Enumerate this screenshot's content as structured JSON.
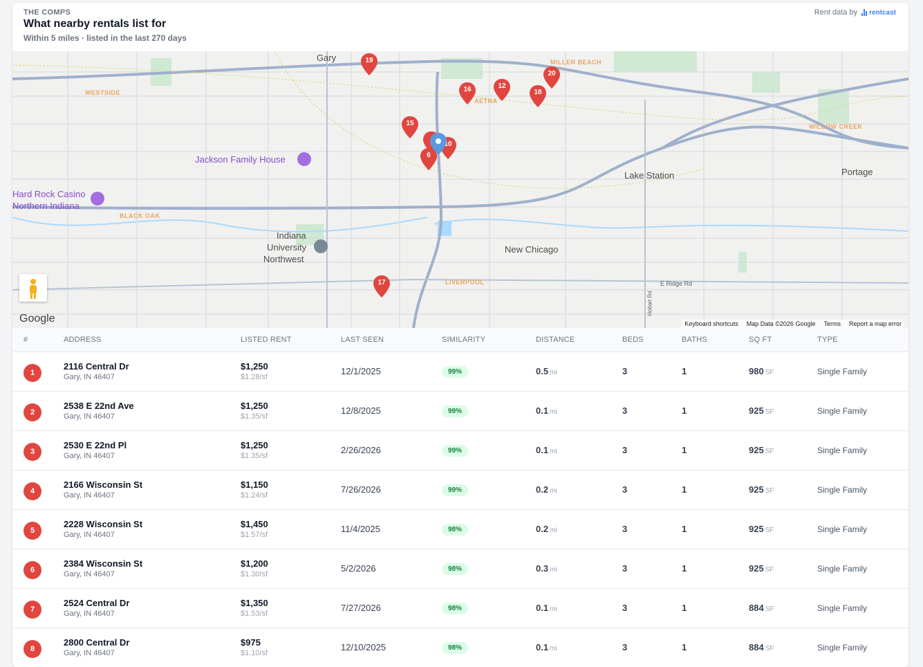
{
  "header": {
    "eyebrow": "THE COMPS",
    "title": "What nearby rentals list for",
    "subtitle": "Within 5 miles · listed in the last 270 days",
    "credit_label": "Rent data by",
    "credit_brand": "rentcast"
  },
  "map": {
    "labels": {
      "gary": "Gary",
      "westside": "WESTSIDE",
      "miller_beach": "MILLER BEACH",
      "aetna": "AETNA",
      "jackson": "Jackson Family House",
      "hard_rock_1": "Hard Rock Casino",
      "hard_rock_2": "Northern Indiana",
      "black_oak": "BLACK OAK",
      "iun_1": "Indiana",
      "iun_2": "University",
      "iun_3": "Northwest",
      "lake_station": "Lake Station",
      "willow_creek": "WILLOW CREEK",
      "portage": "Portage",
      "new_chicago": "New Chicago",
      "liverpool": "LIVERPOOL",
      "ridge_rd": "E Ridge Rd",
      "hobart_rd": "Hobart Rd"
    },
    "pins": [
      "19",
      "16",
      "12",
      "20",
      "18",
      "15",
      "10",
      "6",
      "17"
    ],
    "google": "Google",
    "footer": {
      "shortcuts": "Keyboard shortcuts",
      "mapdata": "Map Data ©2026 Google",
      "terms": "Terms",
      "report": "Report a map error"
    }
  },
  "table": {
    "columns": [
      "#",
      "ADDRESS",
      "LISTED RENT",
      "LAST SEEN",
      "SIMILARITY",
      "DISTANCE",
      "BEDS",
      "BATHS",
      "SQ FT",
      "TYPE"
    ],
    "rows": [
      {
        "n": "1",
        "address": "2116 Central Dr",
        "city": "Gary, IN 46407",
        "rent": "$1,250",
        "psf": "$1.28/sf",
        "seen": "12/1/2025",
        "sim": "99%",
        "dist": "0.5",
        "dist_unit": "mi",
        "beds": "3",
        "baths": "1",
        "sqft": "980",
        "sqft_unit": "SF",
        "type": "Single Family"
      },
      {
        "n": "2",
        "address": "2538 E 22nd Ave",
        "city": "Gary, IN 46407",
        "rent": "$1,250",
        "psf": "$1.35/sf",
        "seen": "12/8/2025",
        "sim": "99%",
        "dist": "0.1",
        "dist_unit": "mi",
        "beds": "3",
        "baths": "1",
        "sqft": "925",
        "sqft_unit": "SF",
        "type": "Single Family"
      },
      {
        "n": "3",
        "address": "2530 E 22nd Pl",
        "city": "Gary, IN 46407",
        "rent": "$1,250",
        "psf": "$1.35/sf",
        "seen": "2/26/2026",
        "sim": "99%",
        "dist": "0.1",
        "dist_unit": "mi",
        "beds": "3",
        "baths": "1",
        "sqft": "925",
        "sqft_unit": "SF",
        "type": "Single Family"
      },
      {
        "n": "4",
        "address": "2166 Wisconsin St",
        "city": "Gary, IN 46407",
        "rent": "$1,150",
        "psf": "$1.24/sf",
        "seen": "7/26/2026",
        "sim": "99%",
        "dist": "0.2",
        "dist_unit": "mi",
        "beds": "3",
        "baths": "1",
        "sqft": "925",
        "sqft_unit": "SF",
        "type": "Single Family"
      },
      {
        "n": "5",
        "address": "2228 Wisconsin St",
        "city": "Gary, IN 46407",
        "rent": "$1,450",
        "psf": "$1.57/sf",
        "seen": "11/4/2025",
        "sim": "98%",
        "dist": "0.2",
        "dist_unit": "mi",
        "beds": "3",
        "baths": "1",
        "sqft": "925",
        "sqft_unit": "SF",
        "type": "Single Family"
      },
      {
        "n": "6",
        "address": "2384 Wisconsin St",
        "city": "Gary, IN 46407",
        "rent": "$1,200",
        "psf": "$1.30/sf",
        "seen": "5/2/2026",
        "sim": "98%",
        "dist": "0.3",
        "dist_unit": "mi",
        "beds": "3",
        "baths": "1",
        "sqft": "925",
        "sqft_unit": "SF",
        "type": "Single Family"
      },
      {
        "n": "7",
        "address": "2524 Central Dr",
        "city": "Gary, IN 46407",
        "rent": "$1,350",
        "psf": "$1.53/sf",
        "seen": "7/27/2026",
        "sim": "98%",
        "dist": "0.1",
        "dist_unit": "mi",
        "beds": "3",
        "baths": "1",
        "sqft": "884",
        "sqft_unit": "SF",
        "type": "Single Family"
      },
      {
        "n": "8",
        "address": "2800 Central Dr",
        "city": "Gary, IN 46407",
        "rent": "$975",
        "psf": "$1.10/sf",
        "seen": "12/10/2025",
        "sim": "98%",
        "dist": "0.1",
        "dist_unit": "mi",
        "beds": "3",
        "baths": "1",
        "sqft": "884",
        "sqft_unit": "SF",
        "type": "Single Family"
      }
    ]
  },
  "colors": {
    "pin": "#e0463f",
    "subject_pin": "#5a9ae0",
    "sim_bg": "#dcfce7",
    "sim_text": "#15803d"
  }
}
